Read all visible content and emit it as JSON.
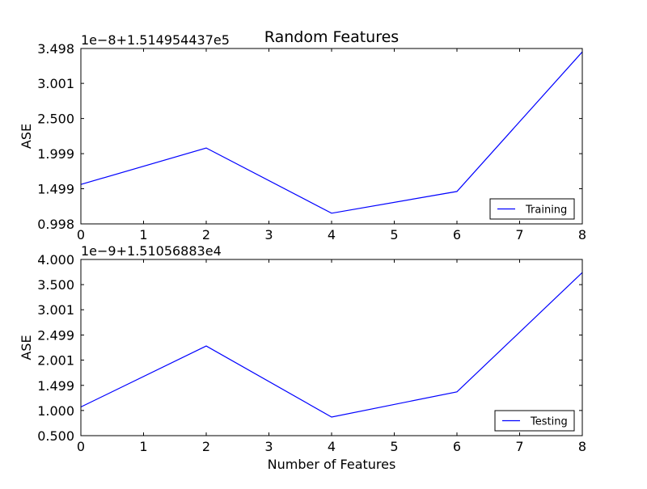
{
  "chart_data": {
    "title": "Random Features",
    "panels": [
      {
        "type": "line",
        "ylabel": "ASE",
        "offset_label": "1e−8+1.514954437e5",
        "xlim": [
          0,
          8
        ],
        "ylim": [
          0.998,
          3.498
        ],
        "xticks": [
          0,
          1,
          2,
          3,
          4,
          5,
          6,
          7,
          8
        ],
        "yticks": [
          0.998,
          1.499,
          1.999,
          2.5,
          3.001,
          3.498
        ],
        "ytick_labels": [
          "0.998",
          "1.499",
          "1.999",
          "2.500",
          "3.001",
          "3.498"
        ],
        "series": [
          {
            "name": "Training",
            "color": "#0000ff",
            "x": [
              0,
              2,
              4,
              6,
              8
            ],
            "y": [
              1.56,
              2.08,
              1.15,
              1.46,
              3.45
            ]
          }
        ],
        "legend": "lower-right"
      },
      {
        "type": "line",
        "ylabel": "ASE",
        "xlabel": "Number of Features",
        "offset_label": "1e−9+1.51056883e4",
        "xlim": [
          0,
          8
        ],
        "ylim": [
          0.5,
          4.0
        ],
        "xticks": [
          0,
          1,
          2,
          3,
          4,
          5,
          6,
          7,
          8
        ],
        "yticks": [
          0.5,
          1.0,
          1.499,
          2.001,
          2.499,
          3.001,
          3.5,
          4.0
        ],
        "ytick_labels": [
          "0.500",
          "1.000",
          "1.499",
          "2.001",
          "2.499",
          "3.001",
          "3.500",
          "4.000"
        ],
        "series": [
          {
            "name": "Testing",
            "color": "#0000ff",
            "x": [
              0,
              2,
              4,
              6,
              8
            ],
            "y": [
              1.07,
              2.28,
              0.87,
              1.37,
              3.74
            ]
          }
        ],
        "legend": "lower-right"
      }
    ]
  }
}
